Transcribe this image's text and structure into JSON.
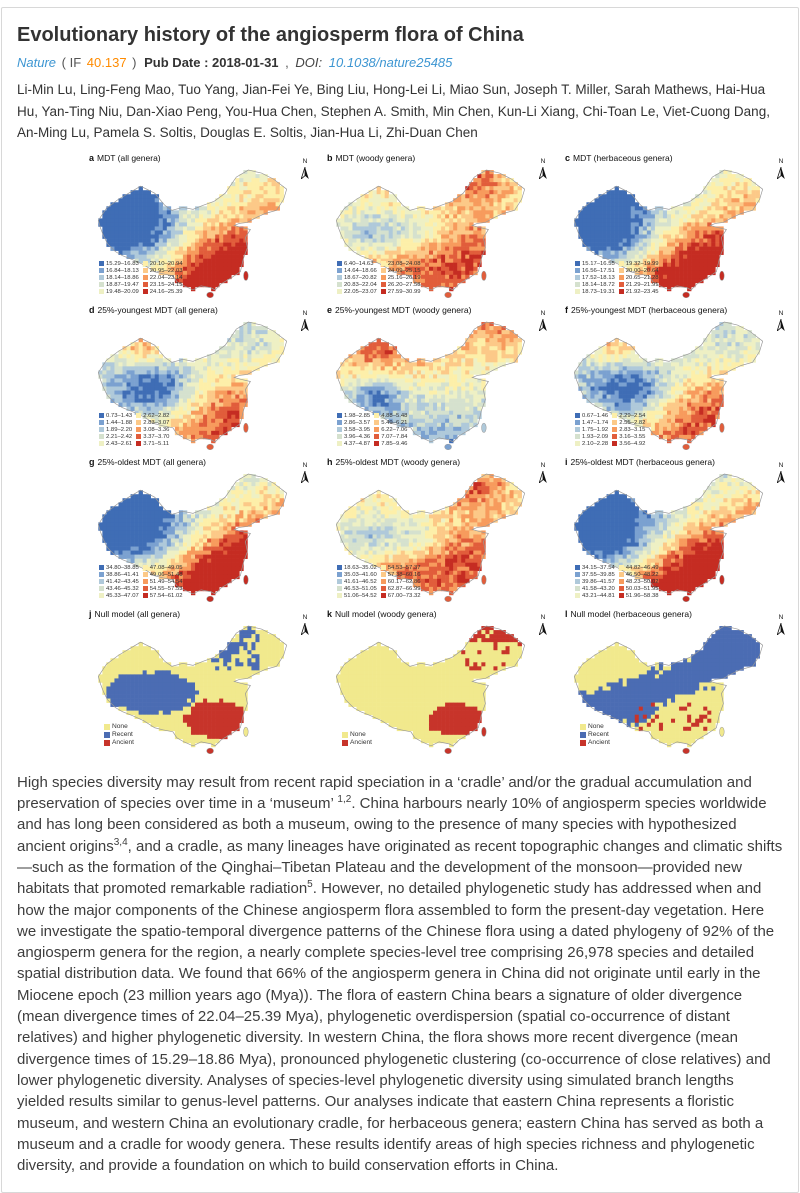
{
  "page": {
    "title": "Evolutionary history of the angiosperm flora of China"
  },
  "meta": {
    "journal": "Nature",
    "if_open": "( IF",
    "if_value": "40.137",
    "if_close": ")",
    "pub_text": "Pub Date : 2018-01-31",
    "comma": ",",
    "doi_label": "DOI:",
    "doi": "10.1038/nature25485"
  },
  "authors": "Li-Min Lu, Ling-Feng Mao, Tuo Yang, Jian-Fei Ye, Bing Liu, Hong-Lei Li, Miao Sun, Joseph T. Miller, Sarah Mathews, Hai-Hua Hu, Yan-Ting Niu, Dan-Xiao Peng, You-Hua Chen, Stephen A. Smith, Min Chen, Kun-Li Xiang, Chi-Toan Le, Viet-Cuong Dang, An-Ming Lu, Pamela S. Soltis, Douglas E. Soltis, Jian-Hua Li, Zhi-Duan Chen",
  "figure": {
    "compass_label": "N",
    "ramp_colors": [
      "#3f6db5",
      "#7ba1d0",
      "#afc9da",
      "#d5e1ce",
      "#eef0c4",
      "#fdefa9",
      "#fcc988",
      "#f79b5d",
      "#e15d3b",
      "#c52c22"
    ],
    "null_colors": {
      "none": "#f1e98d",
      "recent": "#4b6cb3",
      "ancient": "#c7342a"
    },
    "panels": [
      {
        "letter": "a",
        "title": "MDT (all genera)",
        "style": "std",
        "seed": 1,
        "ranges": [
          "15.29–16.83",
          "16.84–18.13",
          "18.14–18.86",
          "18.87–19.47",
          "19.48–20.09",
          "20.10–20.94",
          "20.95–22.03",
          "22.04–23.14",
          "23.15–24.15",
          "24.16–25.39"
        ]
      },
      {
        "letter": "b",
        "title": "MDT (woody genera)",
        "style": "woody",
        "seed": 2,
        "ranges": [
          "6.40–14.63",
          "14.64–18.66",
          "18.67–20.82",
          "20.83–22.04",
          "22.05–23.07",
          "23.08–24.08",
          "24.09–25.15",
          "25.16–26.19",
          "26.20–27.58",
          "27.59–30.99"
        ]
      },
      {
        "letter": "c",
        "title": "MDT (herbaceous genera)",
        "style": "std",
        "seed": 3,
        "ranges": [
          "15.17–16.55",
          "16.56–17.51",
          "17.52–18.13",
          "18.14–18.72",
          "18.73–19.31",
          "19.32–19.99",
          "20.00–20.64",
          "20.65–21.28",
          "21.29–21.91",
          "21.92–23.45"
        ]
      },
      {
        "letter": "d",
        "title": "25%-youngest MDT (all genera)",
        "style": "young_all",
        "seed": 4,
        "ranges": [
          "0.73–1.43",
          "1.44–1.88",
          "1.89–2.20",
          "2.21–2.42",
          "2.43–2.61",
          "2.62–2.82",
          "2.83–3.07",
          "3.08–3.36",
          "3.37–3.70",
          "3.71–5.11"
        ]
      },
      {
        "letter": "e",
        "title": "25%-youngest MDT (woody genera)",
        "style": "young_woody",
        "seed": 5,
        "ranges": [
          "1.98–2.85",
          "2.86–3.57",
          "3.58–3.95",
          "3.96–4.36",
          "4.37–4.87",
          "4.88–5.48",
          "5.49–6.21",
          "6.22–7.06",
          "7.07–7.84",
          "7.85–9.46"
        ]
      },
      {
        "letter": "f",
        "title": "25%-youngest MDT (herbaceous genera)",
        "style": "young_all",
        "seed": 6,
        "ranges": [
          "0.67–1.46",
          "1.47–1.74",
          "1.75–1.92",
          "1.93–2.09",
          "2.10–2.28",
          "2.29–2.54",
          "2.55–2.82",
          "2.83–3.15",
          "3.16–3.55",
          "3.56–4.92"
        ]
      },
      {
        "letter": "g",
        "title": "25%-oldest MDT (all genera)",
        "style": "oldest",
        "seed": 7,
        "ranges": [
          "34.80–38.85",
          "38.86–41.41",
          "41.42–43.45",
          "43.46–45.32",
          "45.33–47.07",
          "47.08–49.05",
          "49.06–51.48",
          "51.49–54.54",
          "54.55–57.53",
          "57.54–61.02"
        ]
      },
      {
        "letter": "h",
        "title": "25%-oldest MDT (woody genera)",
        "style": "woody",
        "seed": 8,
        "ranges": [
          "18.63–35.02",
          "35.03–41.60",
          "41.61–46.52",
          "46.53–51.05",
          "51.06–54.52",
          "54.53–57.37",
          "57.38–60.16",
          "60.17–62.86",
          "62.87–66.99",
          "67.00–73.32"
        ]
      },
      {
        "letter": "i",
        "title": "25%-oldest MDT (herbaceous genera)",
        "style": "oldest",
        "seed": 9,
        "ranges": [
          "34.15–37.54",
          "37.55–39.85",
          "39.86–41.57",
          "41.58–43.20",
          "43.21–44.81",
          "44.82–46.49",
          "46.50–48.22",
          "48.23–50.02",
          "50.03–51.95",
          "51.96–58.38"
        ]
      },
      {
        "letter": "j",
        "title": "Null model (all genera)",
        "style": "null_all",
        "seed": 10,
        "classes": [
          {
            "key": "none",
            "label": "None"
          },
          {
            "key": "recent",
            "label": "Recent"
          },
          {
            "key": "ancient",
            "label": "Ancient"
          }
        ]
      },
      {
        "letter": "k",
        "title": "Null model (woody genera)",
        "style": "null_woody",
        "seed": 11,
        "classes": [
          {
            "key": "none",
            "label": "None"
          },
          {
            "key": "ancient",
            "label": "Ancient"
          }
        ]
      },
      {
        "letter": "l",
        "title": "Null model (herbaceous genera)",
        "style": "null_herb",
        "seed": 12,
        "classes": [
          {
            "key": "none",
            "label": "None"
          },
          {
            "key": "recent",
            "label": "Recent"
          },
          {
            "key": "ancient",
            "label": "Ancient"
          }
        ]
      }
    ]
  },
  "abstract": {
    "segments": [
      {
        "text": "High species diversity may result from recent rapid speciation in a ‘cradle’ and/or the gradual accumulation and preservation of species over time in a ‘museum’ "
      },
      {
        "sup": "1,2"
      },
      {
        "text": ". China harbours nearly 10% of angiosperm species worldwide and has long been considered as both a museum, owing to the presence of many species with hypothesized ancient origins"
      },
      {
        "sup": "3,4"
      },
      {
        "text": ", and a cradle, as many lineages have originated as recent topographic changes and climatic shifts—such as the formation of the Qinghai–Tibetan Plateau and the development of the monsoon—provided new habitats that promoted remarkable radiation"
      },
      {
        "sup": "5"
      },
      {
        "text": ". However, no detailed phylogenetic study has addressed when and how the major components of the Chinese angiosperm flora assembled to form the present-day vegetation. Here we investigate the spatio-temporal divergence patterns of the Chinese flora using a dated phylogeny of 92% of the angiosperm genera for the region, a nearly complete species-level tree comprising 26,978 species and detailed spatial distribution data. We found that 66% of the angiosperm genera in China did not originate until early in the Miocene epoch (23 million years ago (Mya)). The flora of eastern China bears a signature of older divergence (mean divergence times of 22.04–25.39 Mya), phylogenetic overdispersion (spatial co-occurrence of distant relatives) and higher phylogenetic diversity. In western China, the flora shows more recent divergence (mean divergence times of 15.29–18.86 Mya), pronounced phylogenetic clustering (co-occurrence of close relatives) and lower phylogenetic diversity. Analyses of species-level phylogenetic diversity using simulated branch lengths yielded results similar to genus-level patterns. Our analyses indicate that eastern China represents a floristic museum, and western China an evolutionary cradle, for herbaceous genera; eastern China has served as both a museum and a cradle for woody genera. These results identify areas of high species richness and phylogenetic diversity, and provide a foundation on which to build conservation efforts in China."
      }
    ]
  }
}
